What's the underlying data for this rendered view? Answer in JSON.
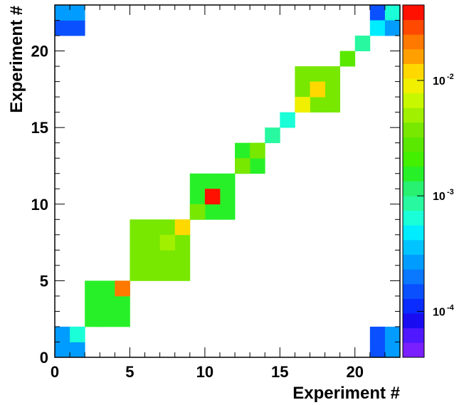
{
  "chart_data": {
    "type": "heatmap",
    "xlabel": "Experiment #",
    "ylabel": "Experiment #",
    "xlim": [
      0,
      23
    ],
    "ylim": [
      0,
      23
    ],
    "x_ticks": [
      "0",
      "5",
      "10",
      "15",
      "20"
    ],
    "y_ticks": [
      "0",
      "5",
      "10",
      "15",
      "20"
    ],
    "color_scale": "log",
    "color_range": [
      4e-05,
      0.045
    ],
    "colorbar_labels": [
      {
        "base": "10",
        "exp": "-2",
        "value": 0.01
      },
      {
        "base": "10",
        "exp": "-3",
        "value": 0.001
      },
      {
        "base": "10",
        "exp": "-4",
        "value": 0.0001
      }
    ],
    "palette": [
      "#7a1fff",
      "#5018ff",
      "#1a0cf0",
      "#0a2cff",
      "#0a50ff",
      "#0a78ff",
      "#009cff",
      "#00c4ff",
      "#00ecff",
      "#1affd8",
      "#28f8a0",
      "#28f070",
      "#28f028",
      "#42f000",
      "#5ae800",
      "#78e800",
      "#a0f000",
      "#c8f800",
      "#f0f000",
      "#ffd800",
      "#ffa000",
      "#ff7800",
      "#ff4800",
      "#ff1000"
    ],
    "cells": [
      {
        "x": [
          0,
          1
        ],
        "y": [
          0,
          1
        ],
        "value": 0.00025
      },
      {
        "x": [
          0,
          0
        ],
        "y": [
          1,
          1
        ],
        "value": 0.00025
      },
      {
        "x": [
          1,
          1
        ],
        "y": [
          1,
          1
        ],
        "value": 0.0007
      },
      {
        "x": [
          0,
          1
        ],
        "y": [
          21,
          21
        ],
        "value": 0.00015
      },
      {
        "x": [
          0,
          1
        ],
        "y": [
          22,
          22
        ],
        "value": 0.00025
      },
      {
        "x": [
          21,
          21
        ],
        "y": [
          0,
          1
        ],
        "value": 0.00015
      },
      {
        "x": [
          22,
          22
        ],
        "y": [
          0,
          1
        ],
        "value": 0.00025
      },
      {
        "x": [
          21,
          21
        ],
        "y": [
          22,
          22
        ],
        "value": 0.00015
      },
      {
        "x": [
          22,
          22
        ],
        "y": [
          22,
          22
        ],
        "value": 0.0007
      },
      {
        "x": [
          21,
          21
        ],
        "y": [
          21,
          21
        ],
        "value": 0.0005
      },
      {
        "x": [
          22,
          22
        ],
        "y": [
          21,
          21
        ],
        "value": 0.00025
      },
      {
        "x": [
          2,
          4
        ],
        "y": [
          2,
          4
        ],
        "value": 0.0015
      },
      {
        "x": [
          4,
          4
        ],
        "y": [
          4,
          4
        ],
        "value": 0.025
      },
      {
        "x": [
          5,
          8
        ],
        "y": [
          5,
          8
        ],
        "value": 0.0035
      },
      {
        "x": [
          7,
          7
        ],
        "y": [
          7,
          7
        ],
        "value": 0.005
      },
      {
        "x": [
          8,
          8
        ],
        "y": [
          8,
          8
        ],
        "value": 0.011
      },
      {
        "x": [
          9,
          11
        ],
        "y": [
          9,
          11
        ],
        "value": 0.0015
      },
      {
        "x": [
          9,
          9
        ],
        "y": [
          9,
          9
        ],
        "value": 0.0035
      },
      {
        "x": [
          10,
          10
        ],
        "y": [
          10,
          10
        ],
        "value": 0.04
      },
      {
        "x": [
          12,
          13
        ],
        "y": [
          12,
          13
        ],
        "value": 0.0015
      },
      {
        "x": [
          12,
          12
        ],
        "y": [
          12,
          12
        ],
        "value": 0.0035
      },
      {
        "x": [
          13,
          13
        ],
        "y": [
          13,
          13
        ],
        "value": 0.0035
      },
      {
        "x": [
          14,
          14
        ],
        "y": [
          14,
          14
        ],
        "value": 0.001
      },
      {
        "x": [
          15,
          15
        ],
        "y": [
          15,
          15
        ],
        "value": 0.0007
      },
      {
        "x": [
          16,
          18
        ],
        "y": [
          16,
          18
        ],
        "value": 0.0035
      },
      {
        "x": [
          16,
          16
        ],
        "y": [
          16,
          16
        ],
        "value": 0.008
      },
      {
        "x": [
          17,
          17
        ],
        "y": [
          17,
          17
        ],
        "value": 0.011
      },
      {
        "x": [
          19,
          19
        ],
        "y": [
          19,
          19
        ],
        "value": 0.0025
      },
      {
        "x": [
          20,
          20
        ],
        "y": [
          20,
          20
        ],
        "value": 0.001
      }
    ]
  }
}
